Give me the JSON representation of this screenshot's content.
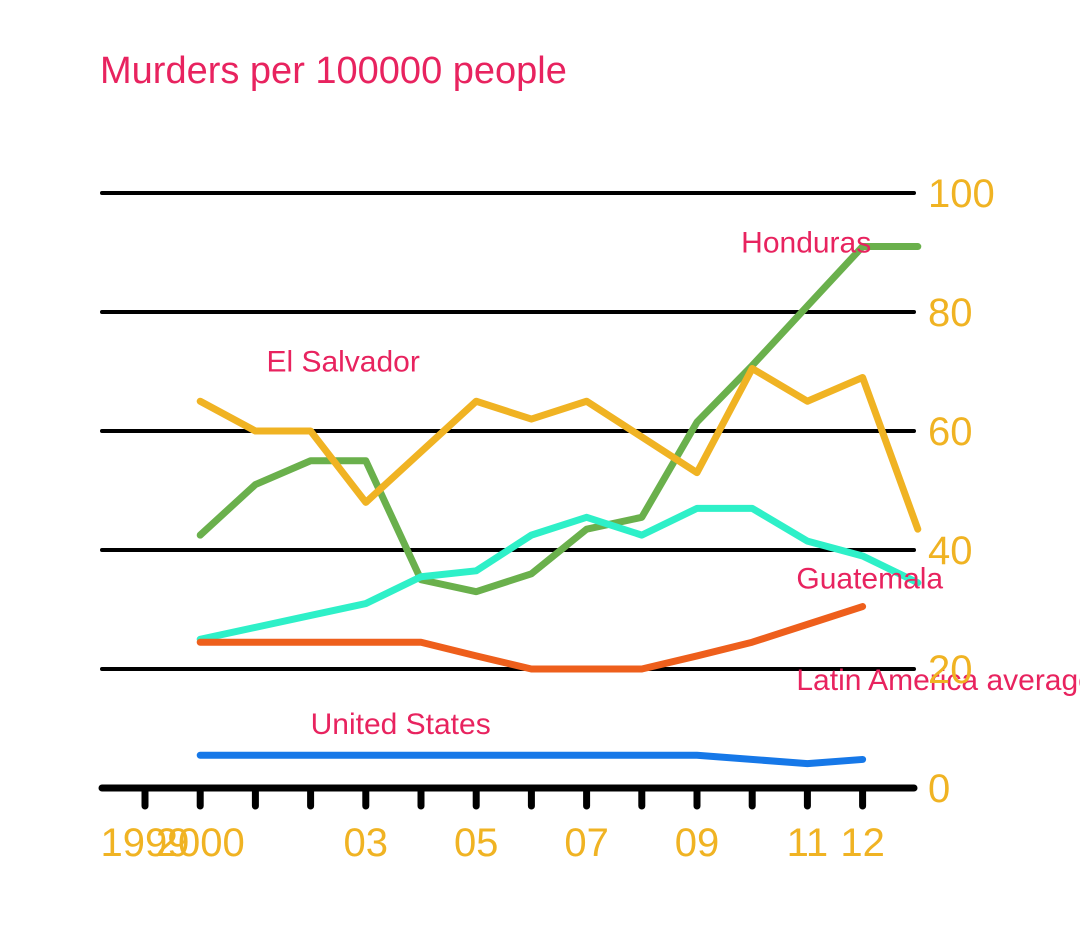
{
  "title": "Murders per 100000 people",
  "colors": {
    "title": "#e8235f",
    "label": "#e8235f",
    "tick": "#f0b323",
    "grid": "#000000"
  },
  "chart_data": {
    "type": "line",
    "title": "Murders per 100000 people",
    "ylim": [
      0,
      100
    ],
    "xlim": [
      1999,
      2013
    ],
    "y_ticks": [
      0,
      20,
      40,
      60,
      80,
      100
    ],
    "y_tick_labels": [
      "0",
      "20",
      "40",
      "60",
      "80",
      "100"
    ],
    "x_ticks": [
      1999,
      2000,
      2001,
      2002,
      2003,
      2004,
      2005,
      2006,
      2007,
      2008,
      2009,
      2010,
      2011,
      2012
    ],
    "x_tick_labels": [
      {
        "x": 1999,
        "label": "1999"
      },
      {
        "x": 2000,
        "label": "2000"
      },
      {
        "x": 2003,
        "label": "03"
      },
      {
        "x": 2005,
        "label": "05"
      },
      {
        "x": 2007,
        "label": "07"
      },
      {
        "x": 2009,
        "label": "09"
      },
      {
        "x": 2011,
        "label": "11"
      },
      {
        "x": 2012,
        "label": "12"
      }
    ],
    "grid": true,
    "axis_side": "right",
    "series": [
      {
        "name": "Honduras",
        "color": "#6ab04c",
        "x": [
          2000,
          2001,
          2002,
          2003,
          2004,
          2005,
          2006,
          2007,
          2008,
          2009,
          2010,
          2011,
          2012,
          2013
        ],
        "y": [
          42.5,
          51,
          55,
          55,
          35,
          33,
          36,
          43.5,
          45.5,
          61.5,
          71,
          81,
          91,
          91
        ],
        "label_anchor": {
          "x": 2009.8,
          "y": 90
        }
      },
      {
        "name": "El Salvador",
        "color": "#f0b323",
        "x": [
          2000,
          2001,
          2002,
          2003,
          2004,
          2005,
          2006,
          2007,
          2008,
          2009,
          2010,
          2011,
          2012,
          2013
        ],
        "y": [
          65,
          60,
          60,
          48,
          56.5,
          65,
          62,
          65,
          59,
          53,
          70.5,
          65,
          69,
          43.5
        ],
        "label_anchor": {
          "x": 2001.2,
          "y": 70
        }
      },
      {
        "name": "Guatemala",
        "color": "#2ef0c8",
        "x": [
          2000,
          2002,
          2003,
          2004,
          2005,
          2006,
          2007,
          2008,
          2009,
          2010,
          2011,
          2012,
          2013
        ],
        "y": [
          25,
          29,
          31,
          35.5,
          36.5,
          42.5,
          45.5,
          42.5,
          47,
          47,
          41.5,
          39,
          34.5
        ],
        "label_anchor": {
          "x": 2010.8,
          "y": 33.5
        }
      },
      {
        "name": "Latin America average",
        "color": "#ee5f1c",
        "x": [
          2000,
          2002,
          2003,
          2004,
          2005,
          2006,
          2007,
          2008,
          2009,
          2010,
          2011,
          2012
        ],
        "y": [
          24.5,
          24.5,
          24.5,
          24.5,
          22.2,
          20,
          20,
          20,
          22.2,
          24.5,
          27.5,
          30.5
        ],
        "label_anchor": {
          "x": 2010.8,
          "y": 16.5
        }
      },
      {
        "name": "United States",
        "color": "#1678e8",
        "x": [
          2000,
          2005,
          2008,
          2009,
          2011,
          2012
        ],
        "y": [
          5.5,
          5.5,
          5.5,
          5.5,
          4.1,
          4.8
        ],
        "label_anchor": {
          "x": 2002,
          "y": 9.1
        }
      }
    ]
  }
}
